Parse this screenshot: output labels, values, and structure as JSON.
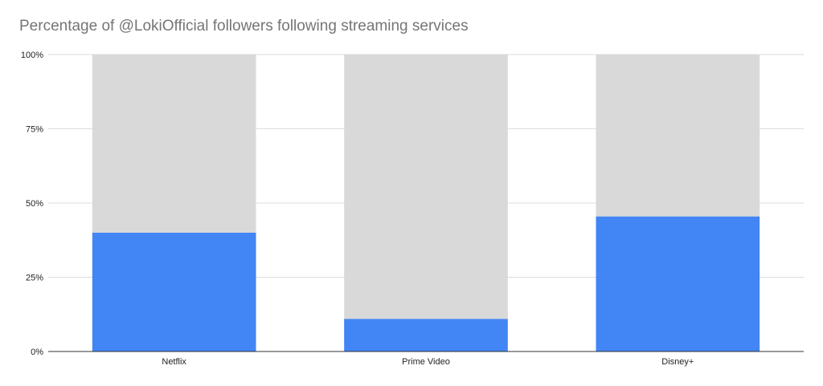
{
  "chart_data": {
    "type": "bar",
    "stacked": true,
    "title": "Percentage of @LokiOfficial followers following streaming services",
    "xlabel": "",
    "ylabel": "",
    "categories": [
      "Netflix",
      "Prime Video",
      "Disney+"
    ],
    "series": [
      {
        "values": [
          40,
          11,
          45.5
        ],
        "color": "#4285f4"
      },
      {
        "values": [
          60,
          89,
          54.5
        ],
        "color": "#d9d9d9"
      }
    ],
    "ylim": [
      0,
      100
    ],
    "yticks": [
      "0%",
      "25%",
      "50%",
      "75%",
      "100%"
    ],
    "grid": true,
    "legend": "none"
  }
}
